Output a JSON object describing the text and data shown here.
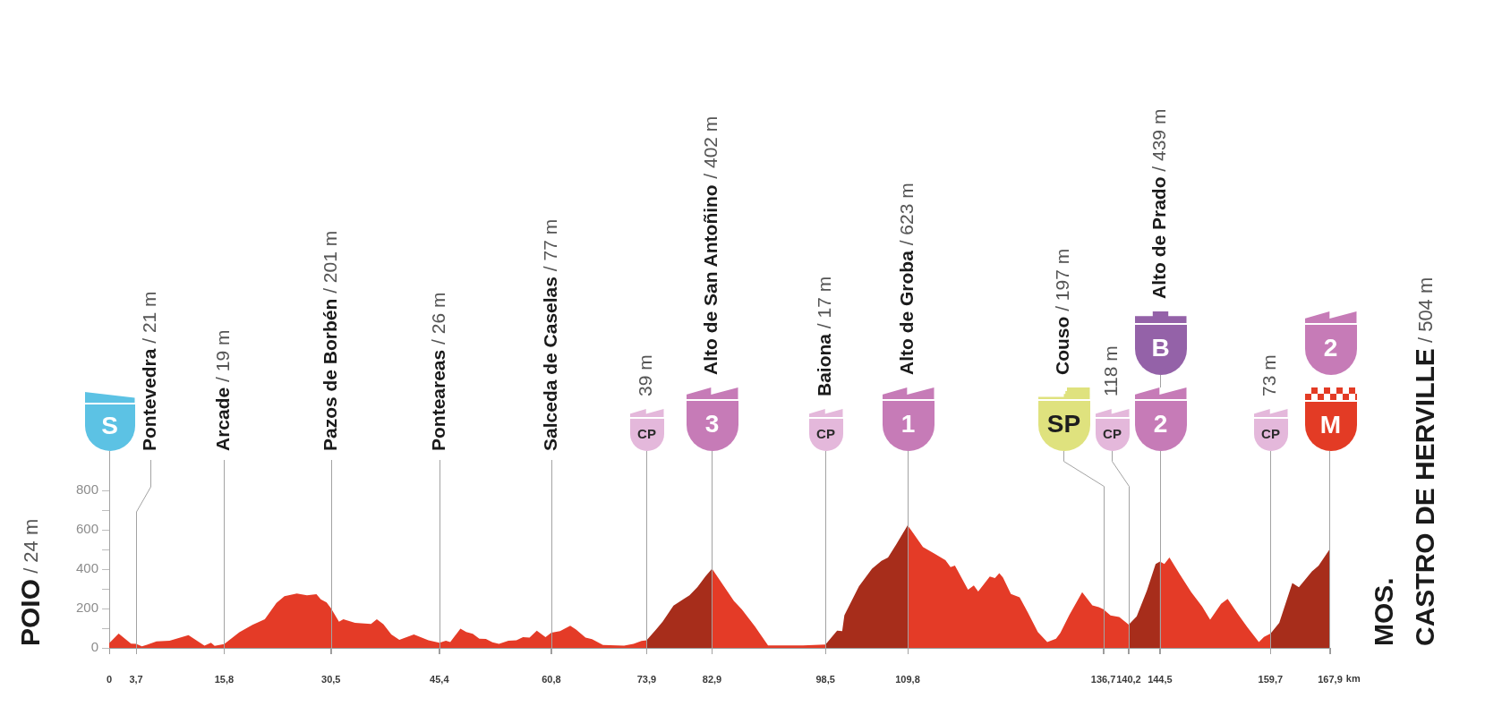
{
  "chart_data": {
    "type": "area",
    "x": [
      0,
      1.3,
      3.0,
      3.7,
      4.5,
      5.2,
      6.5,
      8.3,
      10.9,
      13.1,
      14.0,
      14.5,
      15.8,
      17.9,
      19.7,
      21.4,
      23.0,
      24.1,
      25.8,
      27.2,
      28.5,
      29.1,
      29.9,
      30.5,
      31.6,
      32.2,
      33.8,
      36.0,
      36.8,
      37.7,
      38.8,
      39.9,
      41.9,
      43.9,
      45.4,
      46.3,
      46.9,
      48.3,
      49.1,
      50.0,
      50.9,
      51.8,
      52.7,
      53.6,
      54.9,
      56.0,
      56.9,
      57.8,
      58.8,
      60.0,
      60.8,
      62.0,
      63.4,
      64.2,
      65.5,
      66.4,
      67.9,
      70.8,
      72.1,
      73.2,
      73.9,
      75.2,
      76.1,
      77.6,
      79.8,
      80.9,
      82.0,
      82.9,
      84.4,
      85.9,
      87.0,
      88.8,
      90.6,
      95.4,
      98.5,
      100.1,
      100.8,
      101.1,
      103.1,
      104.9,
      106.2,
      107.1,
      108.2,
      109.8,
      111.9,
      113.5,
      115.0,
      115.7,
      116.3,
      118.1,
      118.9,
      119.5,
      121.1,
      121.8,
      122.4,
      122.9,
      124.0,
      125.2,
      126.3,
      127.7,
      129.0,
      130.2,
      130.8,
      132.0,
      133.8,
      135.2,
      136.1,
      136.7,
      137.7,
      138.9,
      140.2,
      141.3,
      142.7,
      143.9,
      144.5,
      145.1,
      145.8,
      147.2,
      148.8,
      150.3,
      151.4,
      152.9,
      153.8,
      155.2,
      156.5,
      158.1,
      158.8,
      159.7,
      160.9,
      162.7,
      163.6,
      165.4,
      166.3,
      167.9
    ],
    "series": [
      {
        "color": "#e43b27",
        "values": [
          24,
          73,
          22,
          21,
          8,
          16,
          33,
          36,
          65,
          11,
          26,
          10,
          19,
          80,
          117,
          145,
          228,
          263,
          276,
          267,
          273,
          247,
          231,
          201,
          133,
          146,
          127,
          122,
          145,
          120,
          68,
          41,
          68,
          39,
          26,
          36,
          29,
          98,
          81,
          72,
          47,
          46,
          28,
          20,
          36,
          39,
          55,
          52,
          88,
          55,
          77,
          85,
          112,
          93,
          52,
          44,
          15,
          11,
          20,
          35,
          39,
          null,
          null,
          null,
          null,
          null,
          null,
          402,
          320,
          239,
          195,
          109,
          12,
          12,
          17,
          null,
          null,
          null,
          null,
          null,
          null,
          null,
          null,
          623,
          512,
          478,
          446,
          410,
          418,
          296,
          317,
          286,
          362,
          355,
          379,
          358,
          274,
          257,
          182,
          81,
          30,
          47,
          76,
          165,
          283,
          216,
          207,
          197,
          165,
          157,
          118,
          null,
          null,
          null,
          439,
          426,
          459,
          375,
          283,
          210,
          143,
          224,
          249,
          173,
          106,
          30,
          56,
          73,
          null,
          null,
          null,
          null,
          null,
          null
        ]
      },
      {
        "color": "#a72d1b",
        "values": [
          null,
          null,
          null,
          null,
          null,
          null,
          null,
          null,
          null,
          null,
          null,
          null,
          null,
          null,
          null,
          null,
          null,
          null,
          null,
          null,
          null,
          null,
          null,
          null,
          null,
          null,
          null,
          null,
          null,
          null,
          null,
          null,
          null,
          null,
          null,
          null,
          null,
          null,
          null,
          null,
          null,
          null,
          null,
          null,
          null,
          null,
          null,
          null,
          null,
          null,
          null,
          null,
          null,
          null,
          null,
          null,
          null,
          null,
          null,
          null,
          39,
          93,
          133,
          215,
          267,
          309,
          364,
          402,
          null,
          null,
          null,
          null,
          null,
          null,
          17,
          88,
          85,
          166,
          312,
          402,
          442,
          459,
          524,
          623,
          null,
          null,
          null,
          null,
          null,
          null,
          null,
          null,
          null,
          null,
          null,
          null,
          null,
          null,
          null,
          null,
          null,
          null,
          null,
          null,
          null,
          null,
          null,
          null,
          null,
          null,
          118,
          160,
          291,
          426,
          439,
          null,
          null,
          null,
          null,
          null,
          null,
          null,
          null,
          null,
          null,
          null,
          null,
          73,
          127,
          330,
          308,
          389,
          417,
          504
        ]
      }
    ],
    "xlabel": "km",
    "xlim": [
      0,
      167.9
    ],
    "xticks": [
      0,
      {
        "value": 3.7,
        "label": "3,7"
      },
      {
        "value": 15.8,
        "label": "15,8"
      },
      {
        "value": 30.5,
        "label": "30,5"
      },
      {
        "value": 45.4,
        "label": "45,4"
      },
      {
        "value": 60.8,
        "label": "60,8"
      },
      {
        "value": 73.9,
        "label": "73,9"
      },
      {
        "value": 82.9,
        "label": "82,9"
      },
      {
        "value": 98.5,
        "label": "98,5"
      },
      {
        "value": 109.8,
        "label": "109,8"
      },
      {
        "value": 136.7,
        "label": "136,7"
      },
      {
        "value": 140.2,
        "label": "140,2"
      },
      {
        "value": 144.5,
        "label": "144,5"
      },
      {
        "value": 159.7,
        "label": "159,7"
      },
      {
        "value": 167.9,
        "label": "167,9"
      }
    ],
    "ylim": [
      0,
      1000
    ],
    "yticks": [
      0,
      {
        "value": 100,
        "label": null
      },
      200,
      {
        "value": 300,
        "label": null
      },
      400,
      {
        "value": 500,
        "label": null
      },
      600,
      {
        "value": 700,
        "label": null
      },
      800
    ],
    "ref_lines": [
      {
        "axis": "x",
        "value": 3.7,
        "label": "Pontevedra / 21 m",
        "color": "#a3a3a3"
      },
      {
        "axis": "x",
        "value": 15.8,
        "label": "Arcade / 19 m",
        "color": "#a3a3a3"
      },
      {
        "axis": "x",
        "value": 30.5,
        "label": "Pazos de Borbén / 201 m",
        "color": "#a3a3a3"
      },
      {
        "axis": "x",
        "value": 45.4,
        "label": "Ponteareas / 26 m",
        "color": "#a3a3a3"
      },
      {
        "axis": "x",
        "value": 60.8,
        "label": "Salceda de Caselas / 77 m",
        "color": "#a3a3a3"
      },
      {
        "axis": "x",
        "value": 73.9,
        "label": "39 m",
        "color": "#a3a3a3"
      },
      {
        "axis": "x",
        "value": 82.9,
        "label": "Alto de San Antoñino / 402 m",
        "color": "#a3a3a3"
      },
      {
        "axis": "x",
        "value": 98.5,
        "label": "Baiona / 17 m",
        "color": "#a3a3a3"
      },
      {
        "axis": "x",
        "value": 109.8,
        "label": "Alto de Groba / 623 m",
        "color": "#a3a3a3"
      },
      {
        "axis": "x",
        "value": 136.7,
        "label": "Couso / 197 m",
        "color": "#a3a3a3"
      },
      {
        "axis": "x",
        "value": 140.2,
        "label": "118 m",
        "color": "#a3a3a3"
      },
      {
        "axis": "x",
        "value": 144.5,
        "label": "Alto de Prado / 439 m",
        "color": "#a3a3a3"
      },
      {
        "axis": "x",
        "value": 159.7,
        "label": "73 m",
        "color": "#a3a3a3"
      }
    ],
    "annotations": [
      "POIO / 24 m",
      "MOS.\nCASTRO DE HERVILLE / 504 m",
      "S",
      "CP",
      "3",
      "CP",
      "1",
      {
        "text": "SP",
        "x": 136.7,
        "y": 820
      },
      {
        "text": "CP",
        "x": 140.2,
        "y": 820
      },
      "2",
      "B",
      "CP",
      "M",
      "2"
    ]
  }
}
